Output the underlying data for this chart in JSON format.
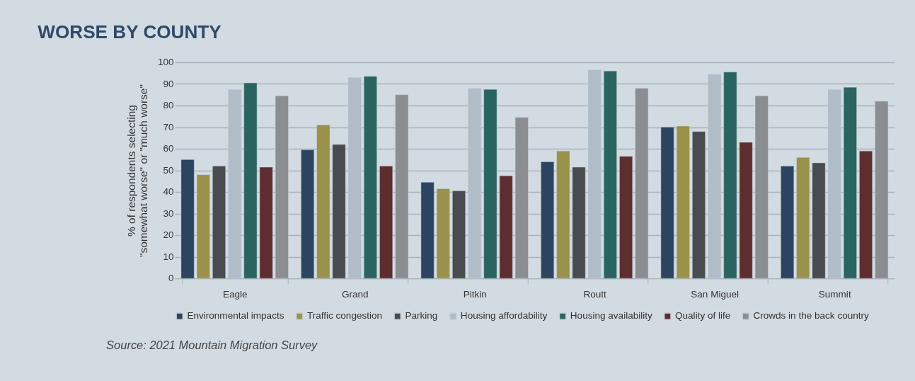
{
  "chart_data": {
    "type": "bar",
    "title": "WORSE BY COUNTY",
    "ylabel": "% of respondents selecting\n\"somewhat worse\" or \"much worse\"",
    "categories": [
      "Eagle",
      "Grand",
      "Pitkin",
      "Routt",
      "San Miguel",
      "Summit"
    ],
    "series": [
      {
        "name": "Environmental impacts",
        "color": "#2b4561",
        "values": [
          55,
          59.5,
          44.5,
          54,
          70,
          52
        ]
      },
      {
        "name": "Traffic congestion",
        "color": "#9a914a",
        "values": [
          48,
          71,
          41.5,
          59,
          70.5,
          56
        ]
      },
      {
        "name": "Parking",
        "color": "#484b50",
        "values": [
          52,
          62,
          40.5,
          51.5,
          68,
          53.5
        ]
      },
      {
        "name": "Housing affordability",
        "color": "#b0bcc8",
        "values": [
          87.5,
          93,
          88,
          96.5,
          94.5,
          87.5
        ]
      },
      {
        "name": "Housing availability",
        "color": "#2a6460",
        "values": [
          90.5,
          93.5,
          87.5,
          96,
          95.5,
          88.5
        ]
      },
      {
        "name": "Quality of life",
        "color": "#5e2d30",
        "values": [
          51.5,
          52,
          47.5,
          56.5,
          63,
          59
        ]
      },
      {
        "name": "Crowds in the back country",
        "color": "#8a8e92",
        "values": [
          84.5,
          85,
          74.5,
          88,
          84.5,
          82
        ]
      }
    ],
    "ylim": [
      0,
      100
    ],
    "yticks": [
      0,
      10,
      20,
      30,
      40,
      50,
      60,
      70,
      80,
      90,
      100
    ],
    "grid": "y",
    "legend": "bottom",
    "annotations": [
      "Source: 2021 Mountain Migration Survey"
    ]
  }
}
